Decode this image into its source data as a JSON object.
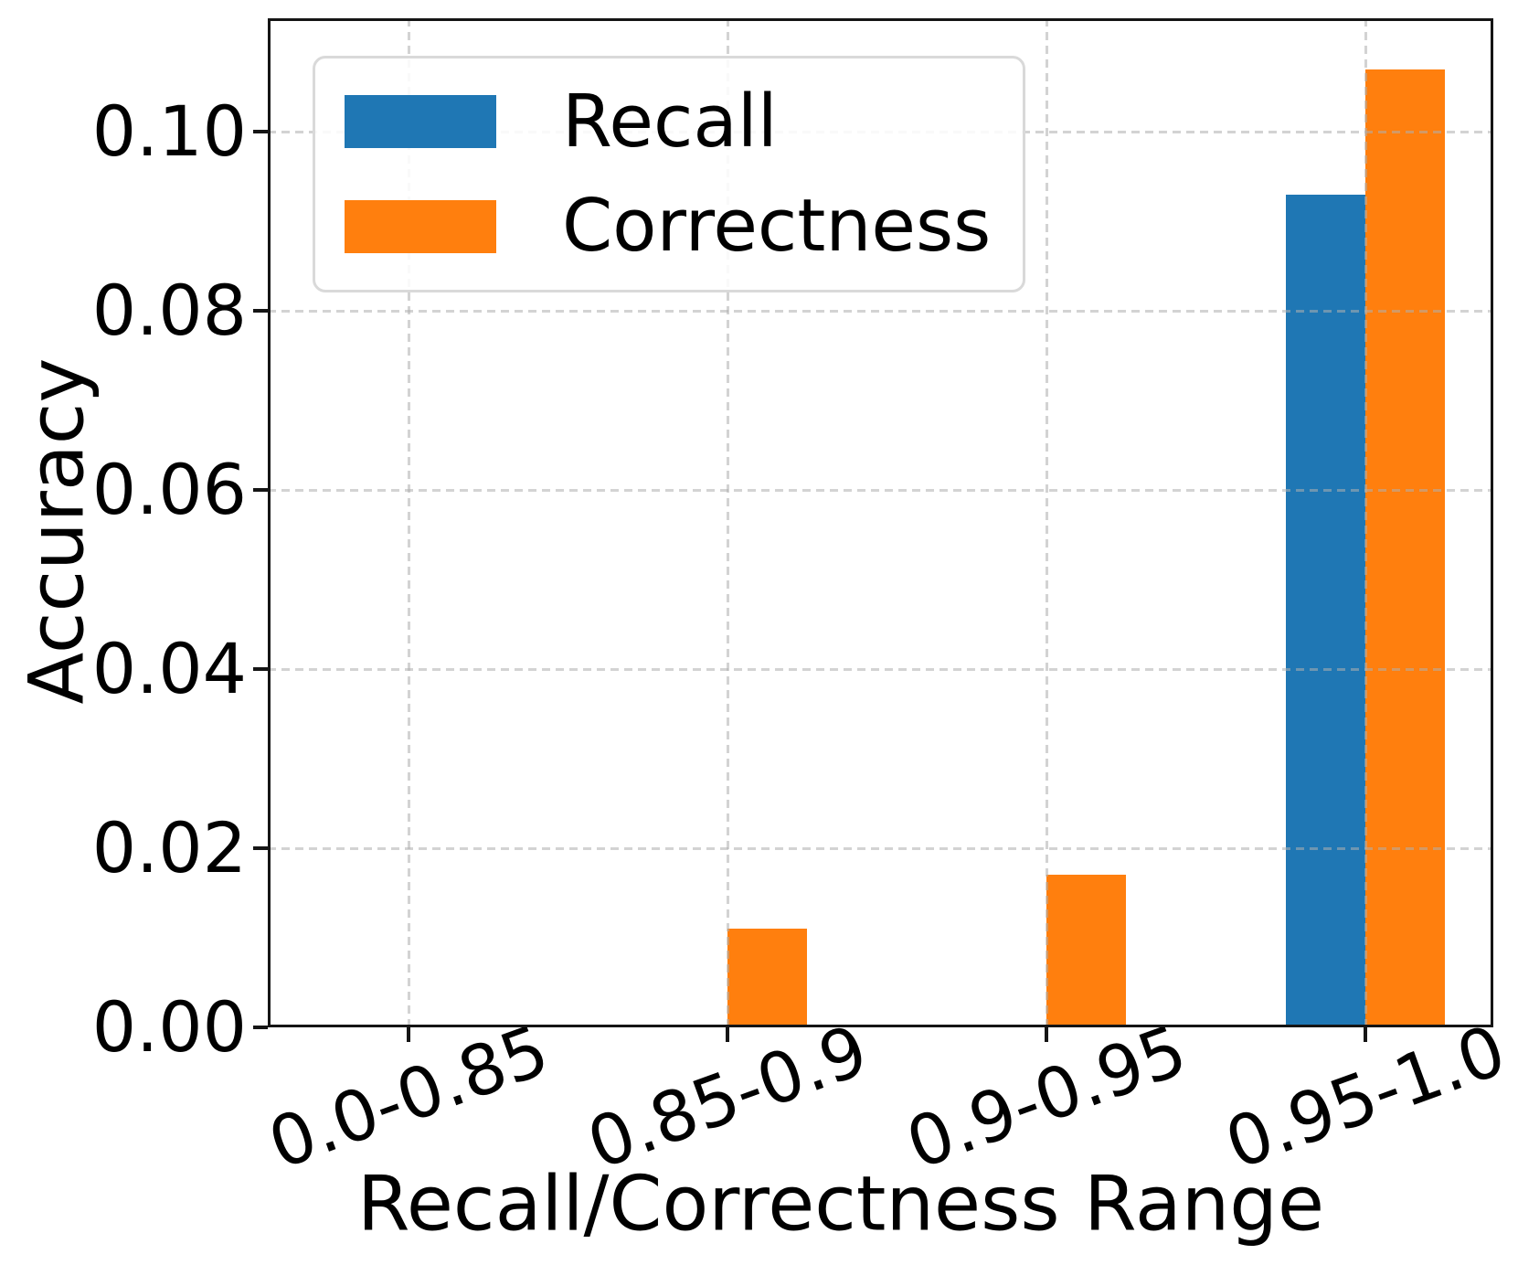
{
  "chart_data": {
    "type": "bar",
    "title": "",
    "xlabel": "Recall/Correctness Range",
    "ylabel": "Accuracy",
    "categories": [
      "0.0-0.85",
      "0.85-0.9",
      "0.9-0.95",
      "0.95-1.0"
    ],
    "series": [
      {
        "name": "Recall",
        "color": "#1f77b4",
        "values": [
          0.0,
          0.0,
          0.0,
          0.093
        ]
      },
      {
        "name": "Correctness",
        "color": "#ff7f0e",
        "values": [
          0.0,
          0.011,
          0.017,
          0.107
        ]
      }
    ],
    "ylim": [
      0.0,
      0.1127
    ],
    "yticks": [
      0.0,
      0.02,
      0.04,
      0.06,
      0.08,
      0.1
    ],
    "ytick_labels": [
      "0.00",
      "0.02",
      "0.04",
      "0.06",
      "0.08",
      "0.10"
    ],
    "xtick_rotation_deg": 20,
    "grid": true,
    "grid_style": "dashed",
    "grid_color": "#d8d8d8",
    "legend_position": "upper left",
    "spine_color": "#151515",
    "background_color": "#ffffff"
  }
}
